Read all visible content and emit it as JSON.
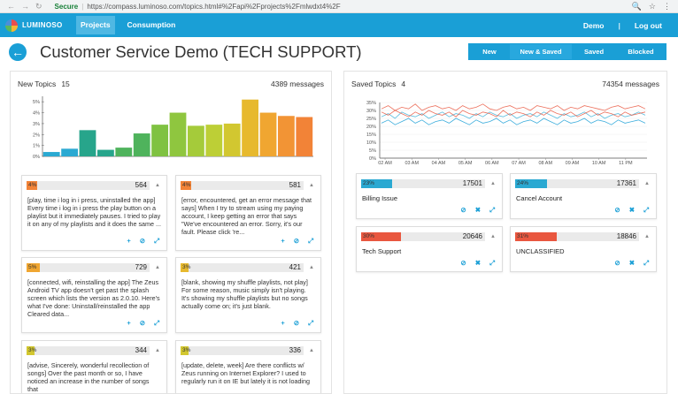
{
  "browser": {
    "secure_label": "Secure",
    "url": "https://compass.luminoso.com/topics.html#%2Fapi%2Fprojects%2Fmlwdxt4%2F"
  },
  "nav": {
    "brand": "LUMINOSO",
    "tabs": [
      "Projects",
      "Consumption"
    ],
    "user": "Demo",
    "logout": "Log out"
  },
  "page": {
    "title": "Customer Service Demo (TECH SUPPORT)"
  },
  "filters": [
    "New",
    "New & Saved",
    "Saved",
    "Blocked"
  ],
  "new_topics": {
    "label": "New Topics",
    "count": "15",
    "messages": "4389 messages"
  },
  "saved_topics": {
    "label": "Saved Topics",
    "count": "4",
    "messages": "74354 messages"
  },
  "colors": {
    "accent": "#1a9fd6",
    "bars": [
      "#2aa9d2",
      "#2aa9d2",
      "#27a58b",
      "#27a58b",
      "#4fb35c",
      "#4fb35c",
      "#7fc241",
      "#8fc63f",
      "#a5cb3a",
      "#bdcf36",
      "#d2c730",
      "#e7b92e",
      "#f0a631",
      "#f29435",
      "#f28337"
    ]
  },
  "chart_data": [
    {
      "type": "bar",
      "y_ticks": [
        "5%",
        "4%",
        "3%",
        "2%",
        "1%",
        "0%"
      ],
      "ylim": [
        0,
        5.5
      ],
      "values": [
        0.4,
        0.7,
        2.4,
        0.6,
        0.8,
        2.1,
        2.9,
        4.0,
        2.8,
        2.9,
        3.0,
        5.2,
        4.0,
        3.7,
        3.6
      ]
    },
    {
      "type": "line",
      "y_ticks": [
        "35%",
        "30%",
        "25%",
        "20%",
        "15%",
        "10%",
        "5%",
        "0%"
      ],
      "x_ticks": [
        "02 AM",
        "03 AM",
        "04 AM",
        "05 AM",
        "06 AM",
        "07 AM",
        "08 AM",
        "09 AM",
        "10 AM",
        "11 PM"
      ],
      "ylim": [
        0,
        35
      ],
      "series_colors": [
        "#e9573f",
        "#3bb0d8",
        "#e9573f",
        "#1a9fd6"
      ],
      "series": [
        {
          "values": [
            31,
            33,
            30,
            32,
            31,
            34,
            30,
            32,
            33,
            31,
            32,
            30,
            33,
            31,
            32,
            34,
            31,
            30,
            32,
            33,
            31,
            32,
            30,
            33,
            32,
            31,
            33,
            30,
            32,
            31,
            33,
            32,
            31,
            30,
            32,
            33,
            31,
            32,
            33,
            31
          ]
        },
        {
          "values": [
            26,
            28,
            25,
            29,
            27,
            26,
            28,
            25,
            27,
            29,
            26,
            28,
            27,
            25,
            28,
            26,
            29,
            27,
            26,
            28,
            25,
            27,
            28,
            26,
            29,
            27,
            25,
            28,
            26,
            27,
            29,
            26,
            28,
            25,
            27,
            28,
            26,
            27,
            29,
            27
          ]
        },
        {
          "values": [
            29,
            27,
            30,
            28,
            26,
            29,
            27,
            30,
            28,
            27,
            29,
            26,
            30,
            28,
            27,
            29,
            28,
            26,
            30,
            27,
            29,
            28,
            26,
            29,
            27,
            30,
            28,
            27,
            29,
            26,
            28,
            30,
            27,
            29,
            28,
            26,
            29,
            27,
            28,
            29
          ]
        },
        {
          "values": [
            22,
            24,
            21,
            23,
            25,
            22,
            24,
            21,
            23,
            24,
            22,
            25,
            23,
            21,
            24,
            22,
            23,
            25,
            22,
            24,
            21,
            23,
            24,
            22,
            25,
            23,
            21,
            24,
            22,
            23,
            25,
            22,
            24,
            23,
            21,
            24,
            22,
            23,
            24,
            22
          ]
        }
      ]
    }
  ],
  "topic_cards": [
    {
      "pct": "4%",
      "fill": 0.04,
      "color": "#f28337",
      "count": "564",
      "text": "[play, time i log in i press, uninstalled the app] Every time i log in i press the play button on a playlist but it immediately pauses. I tried to play it on any of my playlists and it does the same ..."
    },
    {
      "pct": "4%",
      "fill": 0.04,
      "color": "#f28337",
      "count": "581",
      "text": "[error, encountered, get an error message that says] When I try to stream using my paying account, I keep getting an error that says \"We've encountered an error. Sorry, it's our fault. Please click 're..."
    },
    {
      "pct": "5%",
      "fill": 0.05,
      "color": "#f0a631",
      "count": "729",
      "text": "[connected, wifi, reinstalling the app] The Zeus Android TV app doesn't get past the splash screen which lists the version as 2.0.10. Here's what I've done: Uninstall/reinstalled the app Cleared data..."
    },
    {
      "pct": "3%",
      "fill": 0.03,
      "color": "#e7b92e",
      "count": "421",
      "text": "[blank, showing my shuffle playlists, not play] For some reason, music simply isn't playing. It's showing my shuffle playlists but no songs actually come on; it's just blank."
    },
    {
      "pct": "3%",
      "fill": 0.03,
      "color": "#d2c730",
      "count": "344",
      "text": "[advise, Sincerely, wonderful recollection of songs] Over the past month or so, I have noticed an increase in the number of songs that"
    },
    {
      "pct": "3%",
      "fill": 0.03,
      "color": "#d2c730",
      "count": "336",
      "text": "[update, delete, week] Are there conflicts w/ Zeus running on Internet Explorer? I used to regularly run it on IE but lately it is not loading"
    }
  ],
  "saved_cards": [
    {
      "pct": "23%",
      "fill": 0.23,
      "color": "#2aa9d2",
      "count": "17501",
      "name": "Billing Issue"
    },
    {
      "pct": "24%",
      "fill": 0.24,
      "color": "#2aa9d2",
      "count": "17361",
      "name": "Cancel Account"
    },
    {
      "pct": "30%",
      "fill": 0.3,
      "color": "#e9573f",
      "count": "20646",
      "name": "Tech Support"
    },
    {
      "pct": "31%",
      "fill": 0.31,
      "color": "#e9573f",
      "count": "18846",
      "name": "UNCLASSIFIED"
    }
  ],
  "actions": {
    "topic": [
      "+",
      "⊘",
      "⤢"
    ],
    "saved": [
      "⊘",
      "✖",
      "⤢"
    ]
  }
}
